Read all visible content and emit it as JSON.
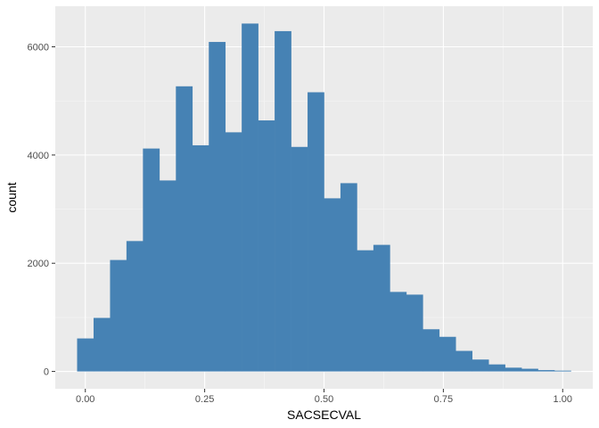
{
  "chart_data": {
    "type": "bar",
    "title": "",
    "xlabel": "SACSECVAL",
    "ylabel": "count",
    "bin_width": 0.0345,
    "bin_centers": [
      0.0,
      0.0345,
      0.069,
      0.1034,
      0.1379,
      0.1724,
      0.2069,
      0.2414,
      0.2759,
      0.3103,
      0.3448,
      0.3793,
      0.4138,
      0.4483,
      0.4828,
      0.5172,
      0.5517,
      0.5862,
      0.6207,
      0.6552,
      0.6897,
      0.7241,
      0.7586,
      0.7931,
      0.8276,
      0.8621,
      0.8966,
      0.931,
      0.9655,
      1.0
    ],
    "values": [
      610,
      990,
      2060,
      2410,
      4120,
      3530,
      5270,
      4180,
      6090,
      4420,
      6430,
      4640,
      6290,
      4150,
      5160,
      3200,
      3480,
      2240,
      2340,
      1470,
      1420,
      780,
      640,
      380,
      220,
      130,
      70,
      50,
      25,
      15
    ],
    "xlim": [
      -0.063,
      1.063
    ],
    "ylim": [
      -320,
      6750
    ],
    "x_ticks": [
      0,
      0.25,
      0.5,
      0.75,
      1.0
    ],
    "x_tick_labels": [
      "0.00",
      "0.25",
      "0.50",
      "0.75",
      "1.00"
    ],
    "y_ticks": [
      0,
      2000,
      4000,
      6000
    ],
    "y_tick_labels": [
      "0",
      "2000",
      "4000",
      "6000"
    ],
    "grid": true,
    "legend": "none"
  },
  "colors": {
    "panel_background": "#ebebeb",
    "grid_major": "#ffffff",
    "grid_minor": "#f5f5f5",
    "bar_fill": "#4682b4",
    "tick_mark": "#333333"
  }
}
